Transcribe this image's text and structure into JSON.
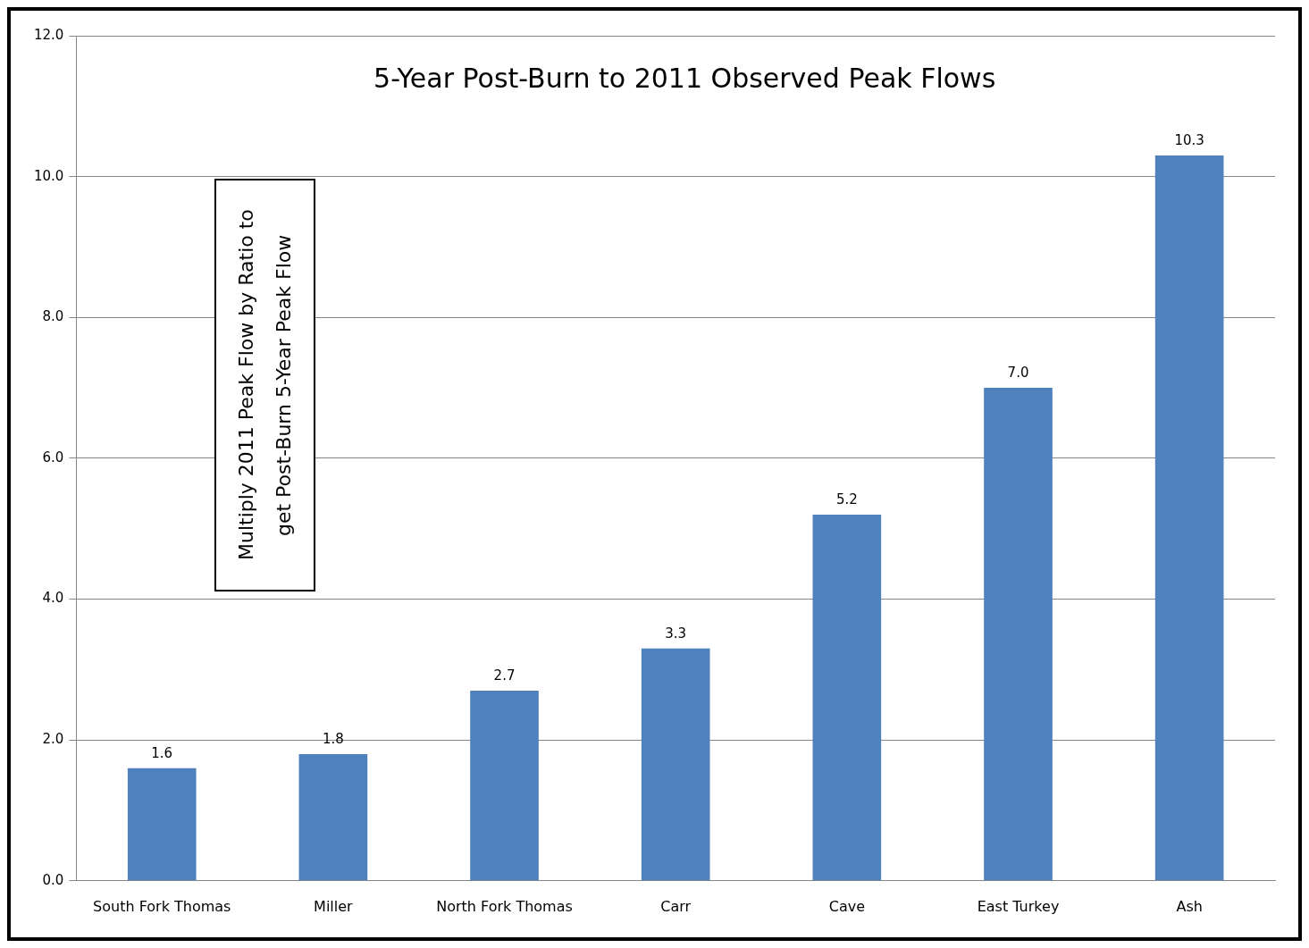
{
  "chart_data": {
    "type": "bar",
    "title": "5-Year Post-Burn to 2011 Observed Peak Flows",
    "ylabel": "Multiply 2011 Peak Flow by Ratio to get Post-Burn 5-Year Peak Flow",
    "categories": [
      "South Fork Thomas",
      "Miller",
      "North Fork Thomas",
      "Carr",
      "Cave",
      "East Turkey",
      "Ash"
    ],
    "values": [
      1.6,
      1.8,
      2.7,
      3.3,
      5.2,
      7.0,
      10.3
    ],
    "color": "#4f81bd",
    "value_labels": [
      "1.6",
      "1.8",
      "2.7",
      "3.3",
      "5.2",
      "7.0",
      "10.3"
    ],
    "ylim": [
      0,
      12
    ],
    "yticks": [
      {
        "value": 0,
        "label": "0.0"
      },
      {
        "value": 2,
        "label": "2.0"
      },
      {
        "value": 4,
        "label": "4.0"
      },
      {
        "value": 6,
        "label": "6.0"
      },
      {
        "value": 8,
        "label": "8.0"
      },
      {
        "value": 10,
        "label": "10.0"
      },
      {
        "value": 12,
        "label": "12.0"
      }
    ],
    "grid": "y",
    "legend": false
  }
}
